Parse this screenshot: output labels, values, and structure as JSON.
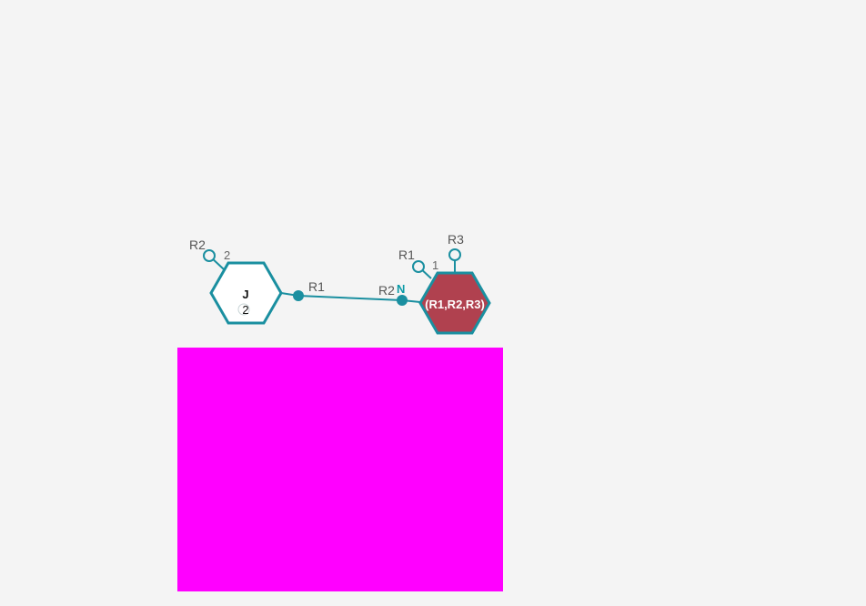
{
  "monomers": [
    {
      "id": "J",
      "label": "J",
      "sublabel": "2",
      "fill": "#ffffff",
      "stroke": "#1a8fa0",
      "attachment_points": [
        {
          "label": "R2",
          "number": "2",
          "filled": false
        },
        {
          "label": "R1",
          "filled": true
        }
      ]
    },
    {
      "id": "R1R2R3",
      "label": "(R1,R2,R3)",
      "fill": "#b0414f",
      "stroke": "#1a8fa0",
      "terminal_label": "N",
      "attachment_points": [
        {
          "label": "R1",
          "number": "1",
          "filled": false
        },
        {
          "label": "R2",
          "filled": true
        },
        {
          "label": "R3",
          "filled": false
        }
      ]
    }
  ],
  "bond": {
    "from": "J.R1",
    "to": "R1R2R3.R2"
  },
  "colors": {
    "accent": "#1a8fa0",
    "terminal": "#0a9aa6",
    "highlight_block": "#ff00ff",
    "background": "#f4f4f4"
  }
}
